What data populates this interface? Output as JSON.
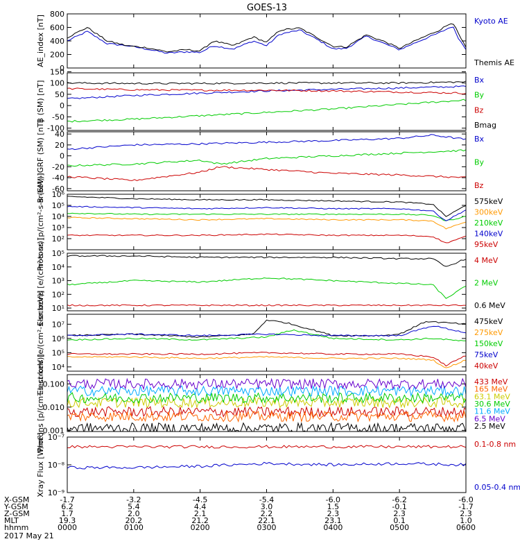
{
  "title": "GOES-13",
  "date_label": "2017 May 21",
  "chart_data": [
    {
      "type": "line",
      "ylabel": "AE_index [nT]",
      "ylim": [
        0,
        800
      ],
      "scale": "linear",
      "yticks": [
        {
          "v": 0,
          "t": "0"
        },
        {
          "v": 200,
          "t": "200"
        },
        {
          "v": 400,
          "t": "400"
        },
        {
          "v": 600,
          "t": "600"
        },
        {
          "v": 800,
          "t": "800"
        }
      ],
      "series": [
        {
          "name": "Kyoto AE",
          "color": "#0000cc",
          "x": [
            0,
            0.3,
            0.6,
            0.9,
            1.2,
            1.5,
            1.8,
            2.0,
            2.2,
            2.5,
            2.8,
            3.0,
            3.2,
            3.5,
            3.8,
            4.0,
            4.2,
            4.5,
            4.8,
            5.0,
            5.3,
            5.6,
            5.8,
            5.9,
            6.0
          ],
          "y": [
            400,
            540,
            360,
            330,
            280,
            220,
            240,
            230,
            330,
            280,
            400,
            330,
            500,
            560,
            400,
            280,
            290,
            470,
            350,
            270,
            400,
            520,
            620,
            420,
            280
          ]
        },
        {
          "name": "Themis AE",
          "color": "#000000",
          "x": [
            0,
            0.3,
            0.6,
            0.9,
            1.2,
            1.5,
            1.8,
            2.0,
            2.2,
            2.5,
            2.8,
            3.0,
            3.2,
            3.5,
            3.8,
            4.0,
            4.2,
            4.5,
            4.8,
            5.0,
            5.3,
            5.6,
            5.8,
            5.9,
            6.0
          ],
          "y": [
            450,
            600,
            400,
            330,
            300,
            240,
            270,
            250,
            400,
            330,
            460,
            380,
            560,
            590,
            430,
            320,
            310,
            490,
            380,
            290,
            430,
            560,
            680,
            480,
            300
          ]
        }
      ]
    },
    {
      "type": "line",
      "ylabel": "B (SM) [nT]",
      "ylim": [
        -110,
        145
      ],
      "scale": "linear",
      "yticks": [
        {
          "v": -100,
          "t": "-100"
        },
        {
          "v": -50,
          "t": "-50"
        },
        {
          "v": 0,
          "t": "0"
        },
        {
          "v": 50,
          "t": "50"
        },
        {
          "v": 100,
          "t": "100"
        },
        {
          "v": 150,
          "t": "150"
        }
      ],
      "series": [
        {
          "name": "Bx",
          "color": "#0000cc",
          "x": [
            0,
            1,
            2,
            3,
            4,
            5,
            6
          ],
          "y": [
            30,
            45,
            55,
            65,
            72,
            78,
            85
          ]
        },
        {
          "name": "By",
          "color": "#00cc00",
          "x": [
            0,
            1,
            2,
            3,
            4,
            5,
            6
          ],
          "y": [
            -70,
            -60,
            -45,
            -30,
            -15,
            5,
            25
          ]
        },
        {
          "name": "Bz",
          "color": "#cc0000",
          "x": [
            0,
            1,
            2,
            3,
            4,
            5,
            6
          ],
          "y": [
            75,
            70,
            68,
            68,
            65,
            60,
            55
          ]
        },
        {
          "name": "Bmag",
          "color": "#000000",
          "x": [
            0,
            1,
            2,
            3,
            4,
            5,
            6
          ],
          "y": [
            100,
            98,
            98,
            100,
            100,
            100,
            105
          ]
        }
      ]
    },
    {
      "type": "line",
      "ylabel": "B (SM)-IGRF (SM) [nT]",
      "ylim": [
        -64,
        44
      ],
      "scale": "linear",
      "yticks": [
        {
          "v": -60,
          "t": "-60"
        },
        {
          "v": -40,
          "t": "-40"
        },
        {
          "v": -20,
          "t": "-20"
        },
        {
          "v": 0,
          "t": "0"
        },
        {
          "v": 20,
          "t": "20"
        },
        {
          "v": 40,
          "t": "40"
        }
      ],
      "series": [
        {
          "name": "Bx",
          "color": "#0000cc",
          "x": [
            0,
            1,
            2,
            3,
            4,
            5,
            5.5,
            6
          ],
          "y": [
            12,
            20,
            22,
            25,
            28,
            32,
            38,
            30
          ]
        },
        {
          "name": "By",
          "color": "#00cc00",
          "x": [
            0,
            1,
            2,
            2.3,
            3,
            4,
            5,
            6
          ],
          "y": [
            -18,
            -15,
            -8,
            -15,
            -5,
            0,
            5,
            10
          ]
        },
        {
          "name": "Bz",
          "color": "#cc0000",
          "x": [
            0,
            1,
            2,
            2.3,
            3,
            4,
            5,
            6
          ],
          "y": [
            -38,
            -45,
            -30,
            -20,
            -25,
            -32,
            -35,
            -40
          ]
        }
      ]
    },
    {
      "type": "line",
      "ylabel": "Protons [p/(cm²-s-sr-keV)]",
      "ylim": [
        1,
        6
      ],
      "scale": "log10",
      "yticks": [
        {
          "v": 2,
          "t": "10²"
        },
        {
          "v": 3,
          "t": "10³"
        },
        {
          "v": 4,
          "t": "10⁴"
        },
        {
          "v": 5,
          "t": "10⁵"
        },
        {
          "v": 6,
          "t": "10⁶"
        }
      ],
      "series": [
        {
          "name": "575keV",
          "color": "#000000",
          "x": [
            0,
            1,
            2,
            3,
            4,
            5,
            5.5,
            5.7,
            6
          ],
          "y": [
            5.8,
            5.6,
            5.5,
            5.5,
            5.4,
            5.3,
            5.1,
            4.0,
            5.0
          ]
        },
        {
          "name": "300keV",
          "color": "#ff9900",
          "x": [
            0,
            1,
            2,
            3,
            4,
            5,
            5.5,
            5.7,
            6
          ],
          "y": [
            3.9,
            3.8,
            3.7,
            3.8,
            3.7,
            3.7,
            3.6,
            2.9,
            3.5
          ]
        },
        {
          "name": "210keV",
          "color": "#00cc00",
          "x": [
            0,
            1,
            2,
            3,
            4,
            5,
            5.5,
            5.7,
            6
          ],
          "y": [
            4.3,
            4.2,
            4.2,
            4.2,
            4.2,
            4.2,
            4.1,
            3.6,
            4.0
          ]
        },
        {
          "name": "140keV",
          "color": "#0000cc",
          "x": [
            0,
            1,
            2,
            3,
            4,
            5,
            5.5,
            5.7,
            6
          ],
          "y": [
            4.9,
            4.8,
            4.7,
            4.8,
            4.7,
            4.7,
            4.5,
            3.6,
            4.6
          ]
        },
        {
          "name": "95keV",
          "color": "#cc0000",
          "x": [
            0,
            1,
            2,
            3,
            4,
            5,
            5.5,
            5.7,
            6
          ],
          "y": [
            2.3,
            2.3,
            2.3,
            2.4,
            2.3,
            2.3,
            2.2,
            1.6,
            2.2
          ]
        }
      ]
    },
    {
      "type": "line",
      "ylabel": "Electrons [e/(cm²-s-sr)]",
      "ylim": [
        0.8,
        5
      ],
      "scale": "log10",
      "yticks": [
        {
          "v": 1,
          "t": "10¹"
        },
        {
          "v": 2,
          "t": "10²"
        },
        {
          "v": 3,
          "t": "10³"
        },
        {
          "v": 4,
          "t": "10⁴"
        },
        {
          "v": 5,
          "t": "10⁵"
        }
      ],
      "series": [
        {
          "name": "4 MeV",
          "color": "#cc0000",
          "x": [
            0,
            6
          ],
          "y": [
            1.2,
            1.2
          ]
        },
        {
          "name": "2 MeV",
          "color": "#00cc00",
          "x": [
            0,
            1,
            2,
            3,
            4,
            5,
            5.5,
            5.7,
            6
          ],
          "y": [
            2.7,
            3.0,
            2.9,
            3.2,
            3.0,
            2.8,
            2.7,
            1.7,
            2.6
          ]
        },
        {
          "name": "0.6 MeV",
          "color": "#000000",
          "x": [
            0,
            1,
            2,
            3,
            4,
            5,
            5.5,
            5.7,
            6
          ],
          "y": [
            4.8,
            4.8,
            4.7,
            4.7,
            4.7,
            4.6,
            4.6,
            4.0,
            4.6
          ]
        }
      ]
    },
    {
      "type": "line",
      "ylabel": "Electrons [e/(cm²-s-sr-keV)]",
      "ylim": [
        3.7,
        7.7
      ],
      "scale": "log10",
      "yticks": [
        {
          "v": 4,
          "t": "10⁴"
        },
        {
          "v": 5,
          "t": "10⁵"
        },
        {
          "v": 6,
          "t": "10⁶"
        },
        {
          "v": 7,
          "t": "10⁷"
        }
      ],
      "series": [
        {
          "name": "475keV",
          "color": "#000000",
          "x": [
            0,
            1,
            2,
            2.8,
            3,
            3.3,
            3.7,
            4,
            4.7,
            5,
            5.4,
            6
          ],
          "y": [
            6.2,
            6.3,
            6.1,
            6.3,
            7.3,
            7.1,
            6.6,
            6.2,
            6.2,
            6.3,
            7.2,
            7.0
          ]
        },
        {
          "name": "275keV",
          "color": "#ff9900",
          "x": [
            0,
            1,
            2,
            3,
            4,
            5,
            5.5,
            5.7,
            6
          ],
          "y": [
            4.7,
            4.7,
            4.6,
            4.7,
            4.6,
            4.6,
            4.5,
            3.9,
            4.5
          ]
        },
        {
          "name": "150keV",
          "color": "#00cc00",
          "x": [
            0,
            1,
            2,
            3,
            3.4,
            4,
            5,
            5.5,
            6
          ],
          "y": [
            5.9,
            6.0,
            5.9,
            6.1,
            6.6,
            6.0,
            5.9,
            6.0,
            5.8
          ]
        },
        {
          "name": "75keV",
          "color": "#0000cc",
          "x": [
            0,
            1,
            2,
            3,
            4,
            5,
            5.5,
            6
          ],
          "y": [
            6.2,
            6.3,
            6.2,
            6.3,
            6.2,
            6.2,
            6.9,
            6.4
          ]
        },
        {
          "name": "40keV",
          "color": "#cc0000",
          "x": [
            0,
            1,
            2,
            3,
            4,
            5,
            5.5,
            5.7,
            6
          ],
          "y": [
            4.9,
            4.9,
            4.9,
            5.0,
            4.9,
            4.9,
            4.7,
            4.1,
            4.8
          ]
        }
      ]
    },
    {
      "type": "line",
      "ylabel": "Protons [p/(cm²-s-sr-keV)]",
      "ylim": [
        -3.05,
        -0.6
      ],
      "scale": "log10",
      "yticks": [
        {
          "v": -3,
          "t": "0.001"
        },
        {
          "v": -2,
          "t": "0.010"
        },
        {
          "v": -1,
          "t": "0.100"
        }
      ],
      "series": [
        {
          "name": "433 MeV",
          "color": "#cc0000",
          "x": [
            0,
            6
          ],
          "y": [
            -2.2,
            -2.2
          ]
        },
        {
          "name": "165 MeV",
          "color": "#ff6600",
          "x": [
            0,
            6
          ],
          "y": [
            -2.4,
            -2.4
          ]
        },
        {
          "name": "63.1 MeV",
          "color": "#cccc00",
          "x": [
            0,
            6
          ],
          "y": [
            -1.8,
            -1.8
          ]
        },
        {
          "name": "30.6 MeV",
          "color": "#00cc00",
          "x": [
            0,
            6
          ],
          "y": [
            -1.6,
            -1.6
          ]
        },
        {
          "name": "11.6 MeV",
          "color": "#00aaff",
          "x": [
            0,
            6
          ],
          "y": [
            -1.3,
            -1.3
          ]
        },
        {
          "name": "6.5 MeV",
          "color": "#6600cc",
          "x": [
            0,
            6
          ],
          "y": [
            -1.0,
            -1.0
          ]
        },
        {
          "name": "2.5 MeV",
          "color": "#000000",
          "x": [
            0,
            6
          ],
          "y": [
            -2.9,
            -2.9
          ]
        }
      ]
    },
    {
      "type": "line",
      "ylabel": "Xray Flux [W/m²]",
      "ylim": [
        -9,
        -7
      ],
      "scale": "log10",
      "yticks": [
        {
          "v": -9,
          "t": "10⁻⁹"
        },
        {
          "v": -8,
          "t": "10⁻⁸"
        },
        {
          "v": -7,
          "t": "10⁻⁷"
        }
      ],
      "series": [
        {
          "name": "0.1-0.8 nm",
          "color": "#cc0000",
          "x": [
            0,
            6
          ],
          "y": [
            -7.35,
            -7.35
          ]
        },
        {
          "name": "0.05-0.4 nm",
          "color": "#0000cc",
          "x": [
            0,
            1,
            2,
            3,
            4,
            5,
            6
          ],
          "y": [
            -8.1,
            -8.1,
            -8.05,
            -7.95,
            -8.0,
            -7.95,
            -8.0
          ]
        }
      ]
    }
  ],
  "x_axis": {
    "range": [
      0,
      6
    ],
    "ticks": [
      0,
      1,
      2,
      3,
      4,
      5,
      6
    ],
    "rows": [
      {
        "label": "X-GSM",
        "values": [
          "-1.7",
          "-3.2",
          "-4.5",
          "-5.4",
          "-6.0",
          "-6.2",
          "-6.0"
        ]
      },
      {
        "label": "Y-GSM",
        "values": [
          "6.2",
          "5.4",
          "4.4",
          "3.0",
          "1.5",
          "-0.1",
          "-1.7"
        ]
      },
      {
        "label": "Z-GSM",
        "values": [
          "1.7",
          "2.0",
          "2.1",
          "2.2",
          "2.3",
          "2.3",
          "2.3"
        ]
      },
      {
        "label": "MLT",
        "values": [
          "19.3",
          "20.2",
          "21.2",
          "22.1",
          "23.1",
          "0.1",
          "1.0"
        ]
      },
      {
        "label": "hhmm",
        "values": [
          "0000",
          "0100",
          "0200",
          "0300",
          "0400",
          "0500",
          "0600"
        ]
      }
    ]
  }
}
